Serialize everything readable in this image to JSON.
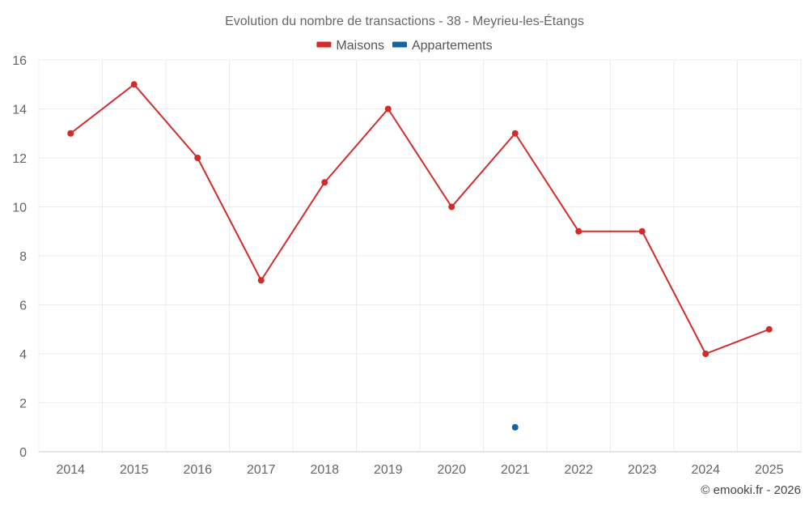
{
  "chart_data": {
    "type": "line",
    "title": "Evolution du nombre de transactions - 38 - Meyrieu-les-Étangs",
    "categories": [
      "2014",
      "2015",
      "2016",
      "2017",
      "2018",
      "2019",
      "2020",
      "2021",
      "2022",
      "2023",
      "2024",
      "2025"
    ],
    "series": [
      {
        "name": "Maisons",
        "color": "#d32a2a",
        "values": [
          13,
          15,
          12,
          7,
          11,
          14,
          10,
          13,
          9,
          9,
          4,
          5
        ]
      },
      {
        "name": "Appartements",
        "color": "#1565a0",
        "values": [
          null,
          null,
          null,
          null,
          null,
          null,
          null,
          1,
          null,
          null,
          null,
          null
        ]
      }
    ],
    "ylim": [
      0,
      16
    ],
    "yticks": [
      0,
      2,
      4,
      6,
      8,
      10,
      12,
      14,
      16
    ],
    "xlabel": "",
    "ylabel": "",
    "grid": true,
    "legend_position": "top-center"
  },
  "credit": "© emooki.fr - 2026"
}
